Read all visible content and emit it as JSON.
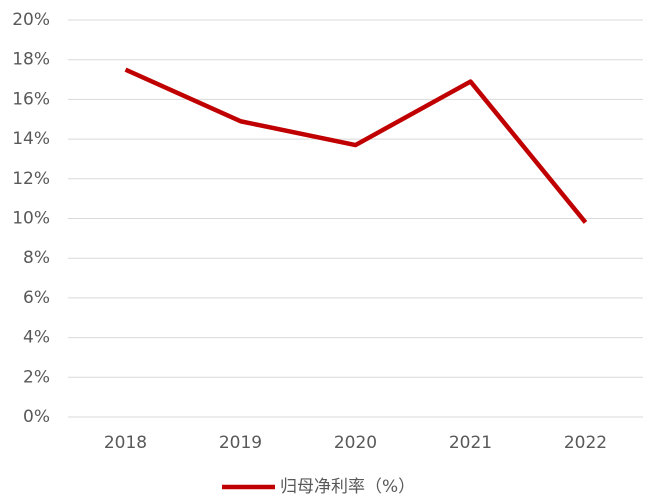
{
  "chart_data": {
    "type": "line",
    "categories": [
      "2018",
      "2019",
      "2020",
      "2021",
      "2022"
    ],
    "series": [
      {
        "name": "归母净利率（%）",
        "color": "#c00000",
        "values": [
          17.5,
          14.9,
          13.7,
          16.9,
          9.8
        ]
      }
    ],
    "ylim": [
      0,
      20
    ],
    "yticks": [
      {
        "value": 0,
        "label": "0%"
      },
      {
        "value": 2,
        "label": "2%"
      },
      {
        "value": 4,
        "label": "4%"
      },
      {
        "value": 6,
        "label": "6%"
      },
      {
        "value": 8,
        "label": "8%"
      },
      {
        "value": 10,
        "label": "10%"
      },
      {
        "value": 12,
        "label": "12%"
      },
      {
        "value": 14,
        "label": "14%"
      },
      {
        "value": 16,
        "label": "16%"
      },
      {
        "value": 18,
        "label": "18%"
      },
      {
        "value": 20,
        "label": "20%"
      }
    ],
    "grid": true,
    "legend": "bottom"
  }
}
